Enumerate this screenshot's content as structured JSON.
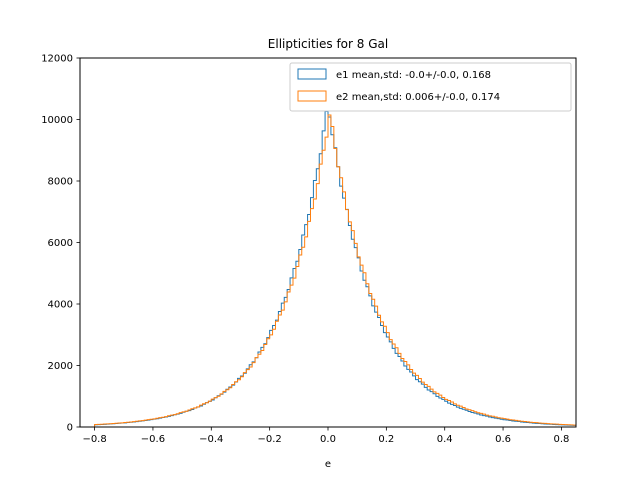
{
  "chart_data": {
    "type": "histogram-step",
    "title": "Ellipticities for 8 Gal",
    "xlabel": "e",
    "ylabel": "",
    "xlim": [
      -0.85,
      0.85
    ],
    "ylim": [
      0,
      12000
    ],
    "xticks": [
      -0.8,
      -0.6,
      -0.4,
      -0.2,
      0.0,
      0.2,
      0.4,
      0.6,
      0.8
    ],
    "xtick_labels": [
      "−0.8",
      "−0.6",
      "−0.4",
      "−0.2",
      "0.0",
      "0.2",
      "0.4",
      "0.6",
      "0.8"
    ],
    "yticks": [
      0,
      2000,
      4000,
      6000,
      8000,
      10000,
      12000
    ],
    "ytick_labels": [
      "0",
      "2000",
      "4000",
      "6000",
      "8000",
      "10000",
      "12000"
    ],
    "bin_edges": {
      "start": -0.8,
      "width": 0.01,
      "count": 165
    },
    "grid": false,
    "legend_position": "top-right",
    "series": [
      {
        "name": "e1 mean,std: -0.0+/-0.0, 0.168",
        "color": "#1f77b4",
        "profile": {
          "peak": 10500,
          "center": 0.0,
          "scale": 0.16
        }
      },
      {
        "name": "e2 mean,std: 0.006+/-0.0, 0.174",
        "color": "#ff7f0e",
        "profile": {
          "peak": 10200,
          "center": 0.006,
          "scale": 0.165
        }
      }
    ]
  }
}
